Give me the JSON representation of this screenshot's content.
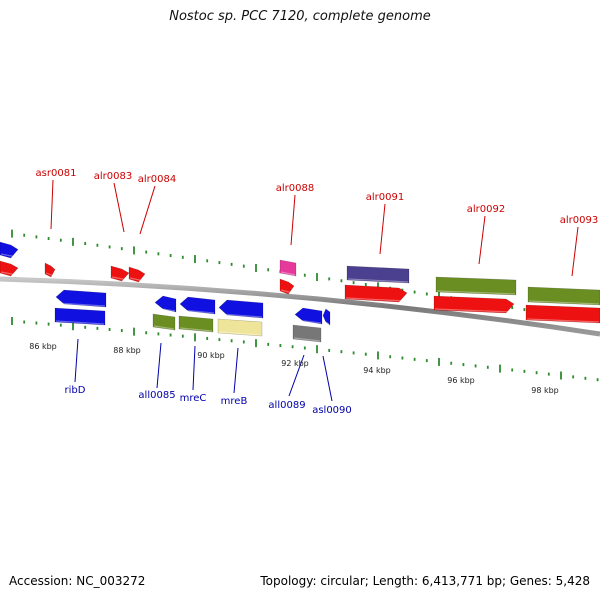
{
  "title": "Nostoc sp. PCC 7120, complete genome",
  "footer": {
    "accession": "Accession: NC_003272",
    "summary": "Topology: circular; Length: 6,413,771 bp; Genes: 5,428"
  },
  "colors": {
    "backbone": "#8a8a8a",
    "tick": "#2e8b2e",
    "forward_label": "#cc0000",
    "reverse_label": "#0000aa",
    "blue": "#1010e0",
    "red": "#ee1111",
    "olive": "#6b8e23",
    "purple": "#4b3f8f",
    "magenta": "#e6399b",
    "khaki": "#efe59a",
    "gray": "#777777"
  },
  "scale_labels": [
    "86 kbp",
    "88 kbp",
    "90 kbp",
    "92 kbp",
    "94 kbp",
    "96 kbp",
    "98 kbp"
  ],
  "genes_forward": [
    {
      "label": "asr0081",
      "color": "red"
    },
    {
      "label": "alr0083",
      "color": "red"
    },
    {
      "label": "alr0084",
      "color": "red"
    },
    {
      "label": "alr0088",
      "color": "red"
    },
    {
      "label": "alr0091",
      "color": "red"
    },
    {
      "label": "alr0092",
      "color": "red"
    },
    {
      "label": "alr0093",
      "color": "red"
    }
  ],
  "genes_reverse": [
    {
      "label": "ribD",
      "color": "blue"
    },
    {
      "label": "all0085",
      "color": "blue"
    },
    {
      "label": "mreC",
      "color": "blue"
    },
    {
      "label": "mreB",
      "color": "blue"
    },
    {
      "label": "all0089",
      "color": "blue"
    },
    {
      "label": "asl0090",
      "color": "blue"
    }
  ]
}
